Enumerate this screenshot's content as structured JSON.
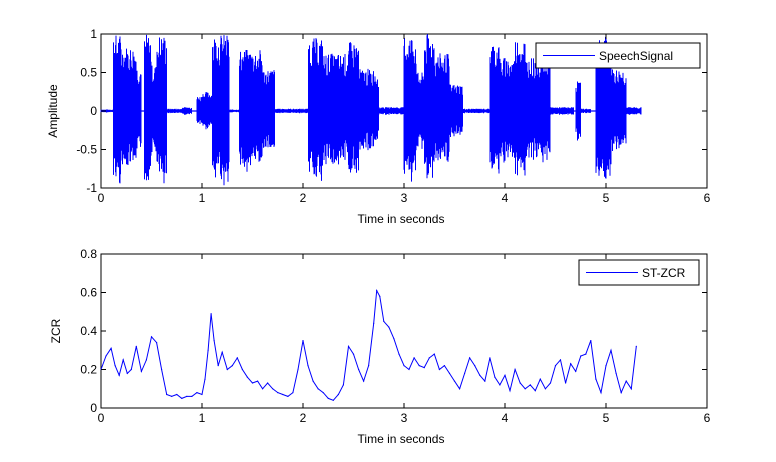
{
  "chart_data": [
    {
      "type": "line",
      "title": "",
      "xlabel": "Time in seconds",
      "ylabel": "Amplitude",
      "xlim": [
        0,
        6
      ],
      "ylim": [
        -1,
        1
      ],
      "xticks": [
        "0",
        "1",
        "2",
        "3",
        "4",
        "5",
        "6"
      ],
      "yticks": [
        "-1",
        "-0.5",
        "0",
        "0.5",
        "1"
      ],
      "grid": false,
      "legend_position": "top-right",
      "series": [
        {
          "name": "SpeechSignal",
          "color": "#0000ff",
          "style": "dense waveform",
          "segments": [
            {
              "start": 0.0,
              "end": 0.12,
              "peak": 0.02
            },
            {
              "start": 0.12,
              "end": 0.2,
              "peak": 1.0
            },
            {
              "start": 0.2,
              "end": 0.35,
              "peak": 0.85
            },
            {
              "start": 0.35,
              "end": 0.4,
              "peak": 0.6
            },
            {
              "start": 0.43,
              "end": 0.5,
              "peak": 1.0
            },
            {
              "start": 0.5,
              "end": 0.55,
              "peak": 0.6
            },
            {
              "start": 0.55,
              "end": 0.65,
              "peak": 1.0
            },
            {
              "start": 0.65,
              "end": 0.8,
              "peak": 0.03
            },
            {
              "start": 0.8,
              "end": 0.9,
              "peak": 0.05
            },
            {
              "start": 0.95,
              "end": 1.0,
              "peak": 0.2
            },
            {
              "start": 1.0,
              "end": 1.1,
              "peak": 0.25
            },
            {
              "start": 1.1,
              "end": 1.27,
              "peak": 1.0
            },
            {
              "start": 1.27,
              "end": 1.37,
              "peak": 0.02
            },
            {
              "start": 1.37,
              "end": 1.6,
              "peak": 0.8
            },
            {
              "start": 1.6,
              "end": 1.72,
              "peak": 0.55
            },
            {
              "start": 1.72,
              "end": 2.05,
              "peak": 0.03
            },
            {
              "start": 2.05,
              "end": 2.2,
              "peak": 0.95
            },
            {
              "start": 2.2,
              "end": 2.45,
              "peak": 0.75
            },
            {
              "start": 2.45,
              "end": 2.55,
              "peak": 0.9
            },
            {
              "start": 2.55,
              "end": 2.75,
              "peak": 0.55
            },
            {
              "start": 2.75,
              "end": 3.0,
              "peak": 0.05
            },
            {
              "start": 3.0,
              "end": 3.12,
              "peak": 1.0
            },
            {
              "start": 3.12,
              "end": 3.2,
              "peak": 0.5
            },
            {
              "start": 3.2,
              "end": 3.3,
              "peak": 1.0
            },
            {
              "start": 3.3,
              "end": 3.45,
              "peak": 0.75
            },
            {
              "start": 3.45,
              "end": 3.58,
              "peak": 0.35
            },
            {
              "start": 3.58,
              "end": 3.85,
              "peak": 0.03
            },
            {
              "start": 3.85,
              "end": 3.95,
              "peak": 0.9
            },
            {
              "start": 3.95,
              "end": 4.1,
              "peak": 0.7
            },
            {
              "start": 4.1,
              "end": 4.2,
              "peak": 0.95
            },
            {
              "start": 4.2,
              "end": 4.45,
              "peak": 0.7
            },
            {
              "start": 4.45,
              "end": 4.68,
              "peak": 0.05
            },
            {
              "start": 4.7,
              "end": 4.75,
              "peak": 0.4
            },
            {
              "start": 4.75,
              "end": 4.85,
              "peak": 0.03
            },
            {
              "start": 4.9,
              "end": 5.05,
              "peak": 1.0
            },
            {
              "start": 5.05,
              "end": 5.2,
              "peak": 0.55
            },
            {
              "start": 5.2,
              "end": 5.35,
              "peak": 0.05
            }
          ]
        }
      ]
    },
    {
      "type": "line",
      "title": "",
      "xlabel": "Time in seconds",
      "ylabel": "ZCR",
      "xlim": [
        0,
        6
      ],
      "ylim": [
        0,
        0.8
      ],
      "xticks": [
        "0",
        "1",
        "2",
        "3",
        "4",
        "5",
        "6"
      ],
      "yticks": [
        "0",
        "0.2",
        "0.4",
        "0.6",
        "0.8"
      ],
      "grid": false,
      "legend_position": "top-right",
      "series": [
        {
          "name": "ST-ZCR",
          "color": "#0000ff",
          "x": [
            0.0,
            0.05,
            0.1,
            0.14,
            0.18,
            0.22,
            0.26,
            0.3,
            0.35,
            0.4,
            0.45,
            0.5,
            0.55,
            0.6,
            0.65,
            0.7,
            0.75,
            0.8,
            0.85,
            0.9,
            0.95,
            1.0,
            1.03,
            1.06,
            1.09,
            1.12,
            1.16,
            1.2,
            1.25,
            1.3,
            1.35,
            1.4,
            1.45,
            1.5,
            1.55,
            1.6,
            1.65,
            1.7,
            1.75,
            1.8,
            1.85,
            1.9,
            1.95,
            2.0,
            2.05,
            2.1,
            2.15,
            2.2,
            2.25,
            2.3,
            2.35,
            2.4,
            2.45,
            2.5,
            2.55,
            2.6,
            2.65,
            2.7,
            2.73,
            2.76,
            2.8,
            2.85,
            2.9,
            2.95,
            3.0,
            3.05,
            3.1,
            3.15,
            3.2,
            3.25,
            3.3,
            3.35,
            3.4,
            3.45,
            3.5,
            3.55,
            3.6,
            3.65,
            3.7,
            3.75,
            3.8,
            3.85,
            3.9,
            3.95,
            4.0,
            4.05,
            4.1,
            4.15,
            4.2,
            4.25,
            4.3,
            4.35,
            4.4,
            4.45,
            4.5,
            4.55,
            4.6,
            4.65,
            4.7,
            4.75,
            4.8,
            4.85,
            4.9,
            4.95,
            5.0,
            5.05,
            5.1,
            5.15,
            5.2,
            5.25,
            5.3
          ],
          "values": [
            0.2,
            0.27,
            0.31,
            0.22,
            0.17,
            0.25,
            0.18,
            0.2,
            0.32,
            0.19,
            0.25,
            0.37,
            0.34,
            0.2,
            0.07,
            0.06,
            0.07,
            0.05,
            0.06,
            0.06,
            0.08,
            0.07,
            0.15,
            0.3,
            0.49,
            0.35,
            0.22,
            0.29,
            0.2,
            0.22,
            0.26,
            0.2,
            0.16,
            0.13,
            0.14,
            0.1,
            0.13,
            0.1,
            0.08,
            0.07,
            0.06,
            0.08,
            0.2,
            0.35,
            0.22,
            0.14,
            0.1,
            0.08,
            0.05,
            0.04,
            0.07,
            0.12,
            0.32,
            0.28,
            0.2,
            0.14,
            0.22,
            0.44,
            0.61,
            0.58,
            0.45,
            0.42,
            0.36,
            0.28,
            0.22,
            0.2,
            0.26,
            0.22,
            0.21,
            0.26,
            0.28,
            0.2,
            0.22,
            0.18,
            0.14,
            0.1,
            0.18,
            0.26,
            0.22,
            0.17,
            0.14,
            0.26,
            0.16,
            0.12,
            0.17,
            0.09,
            0.2,
            0.13,
            0.1,
            0.12,
            0.09,
            0.15,
            0.1,
            0.13,
            0.22,
            0.25,
            0.13,
            0.23,
            0.19,
            0.27,
            0.28,
            0.35,
            0.15,
            0.08,
            0.22,
            0.3,
            0.18,
            0.08,
            0.14,
            0.1,
            0.32
          ]
        }
      ]
    }
  ]
}
